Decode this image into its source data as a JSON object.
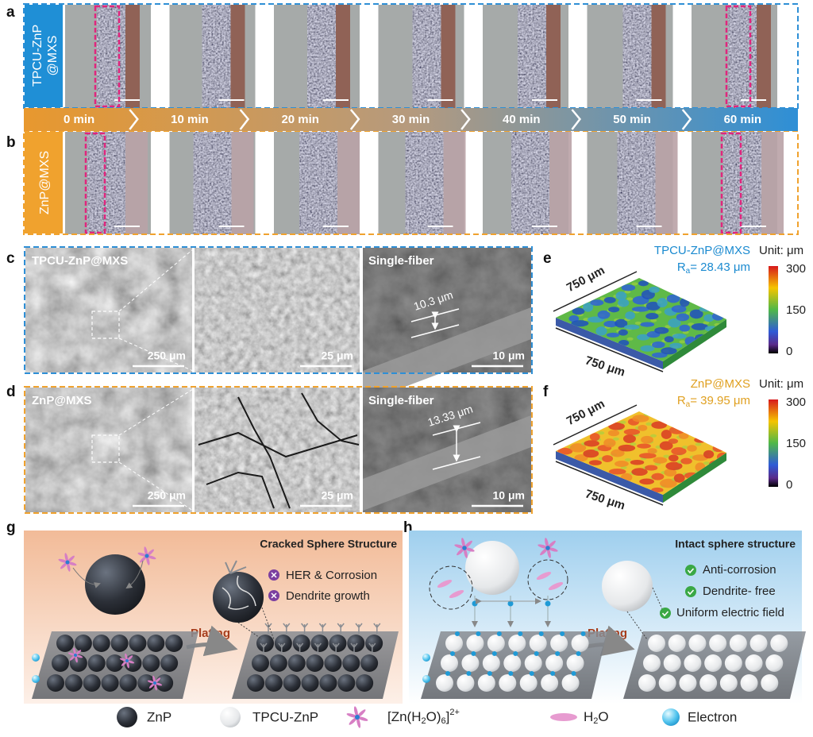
{
  "panel_a": {
    "label": "a",
    "sample": [
      "TPCU-ZnP",
      "@MXS"
    ]
  },
  "timeline": [
    "0 min",
    "10 min",
    "20 min",
    "30 min",
    "40 min",
    "50 min",
    "60 min"
  ],
  "panel_b": {
    "label": "b",
    "sample": "ZnP@MXS"
  },
  "panel_c": {
    "label": "c",
    "sample": "TPCU-ZnP@MXS",
    "scale_bars": [
      "250 μm",
      "25 μm",
      "10 μm"
    ],
    "fiber_title": "Single-fiber",
    "fiber_diameter": "10.3 μm"
  },
  "panel_d": {
    "label": "d",
    "sample": "ZnP@MXS",
    "scale_bars": [
      "250 μm",
      "25 μm",
      "10 μm"
    ],
    "fiber_title": "Single-fiber",
    "fiber_diameter": "13.33 μm"
  },
  "panel_e": {
    "label": "e",
    "sample": "TPCU-ZnP@MXS",
    "roughness": {
      "symbol": "R",
      "subscript": "a",
      "value": "= 28.43 μm"
    },
    "unit": "Unit: μm",
    "colorbar_ticks": [
      300,
      150,
      0
    ],
    "axis_back": "750 μm",
    "axis_front": "750 μm"
  },
  "panel_f": {
    "label": "f",
    "sample": "ZnP@MXS",
    "roughness": {
      "symbol": "R",
      "subscript": "a",
      "value": "= 39.95 μm"
    },
    "unit": "Unit: μm",
    "colorbar_ticks": [
      300,
      150,
      0
    ],
    "axis_back": "750 μm",
    "axis_front": "750 μm"
  },
  "panel_g": {
    "label": "g",
    "title": "Cracked Sphere Structure",
    "notes": [
      "HER & Corrosion",
      "Dendrite growth"
    ],
    "arrow": "Plating"
  },
  "panel_h": {
    "label": "h",
    "title": "Intact sphere structure",
    "notes": [
      "Anti-corrosion",
      "Dendrite- free",
      "Uniform electric field"
    ],
    "arrow": "Plating"
  },
  "legend": {
    "znp": "ZnP",
    "tpcu": "TPCU-ZnP",
    "ion": [
      "[Zn(H",
      "2",
      "O)",
      "6",
      "]",
      "2+"
    ],
    "water": [
      "H",
      "2",
      "O"
    ],
    "electron": "Electron"
  }
}
